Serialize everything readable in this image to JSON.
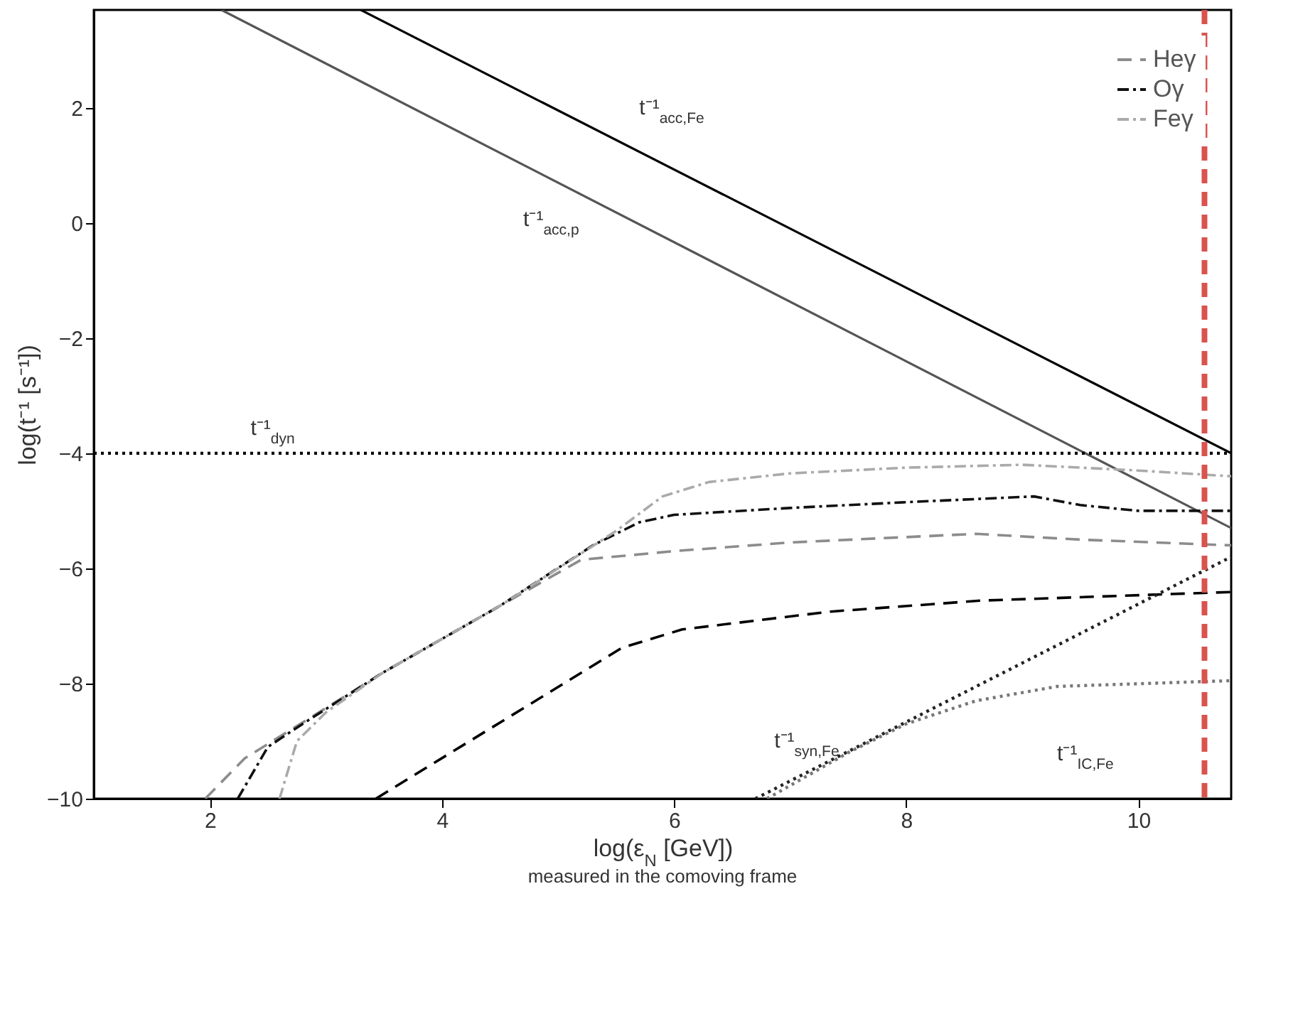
{
  "chart_data": {
    "type": "line",
    "xlabel": "log(ε$_{N}$ [GeV])",
    "ylabel": "log(t⁻¹ [s⁻¹])",
    "xlim": [
      1,
      10.8
    ],
    "ylim": [
      -10,
      3.7
    ],
    "xticks": [
      2,
      4,
      6,
      8,
      10
    ],
    "yticks": [
      -10,
      -8,
      -6,
      -4,
      -2,
      0,
      2
    ],
    "grid": false,
    "legend": "top right",
    "series": [
      {
        "color": "#000000",
        "line_style": "solid",
        "x": [
          3.3,
          10.8
        ],
        "values": [
          3.7,
          -4.0
        ]
      },
      {
        "color": "#555555",
        "line_style": "solid",
        "x": [
          2.1,
          10.8
        ],
        "values": [
          3.7,
          -5.3
        ]
      },
      {
        "color": "#000000",
        "line_style": "dotted",
        "x": [
          1,
          10.8
        ],
        "values": [
          -4,
          -4
        ]
      },
      {
        "name": "Heγ",
        "color": "#8c8c8c",
        "line_style": "dashed",
        "x": [
          1.96,
          2.3,
          2.7,
          3.5,
          4.5,
          5.2,
          6,
          7,
          8.6,
          9.5,
          10.8
        ],
        "values": [
          -10,
          -9.3,
          -8.8,
          -7.8,
          -6.65,
          -5.85,
          -5.7,
          -5.55,
          -5.4,
          -5.5,
          -5.6
        ]
      },
      {
        "name": "Oγ",
        "color": "#111111",
        "line_style": "dashdot",
        "x": [
          2.24,
          2.5,
          2.8,
          3.5,
          4.5,
          5.3,
          5.7,
          6,
          7,
          8,
          9.1,
          9.5,
          10,
          10.8
        ],
        "values": [
          -10,
          -9.1,
          -8.7,
          -7.8,
          -6.65,
          -5.6,
          -5.2,
          -5.07,
          -4.95,
          -4.85,
          -4.75,
          -4.9,
          -5.0,
          -5.0
        ]
      },
      {
        "name": "Feγ",
        "color": "#aaaaaa",
        "line_style": "dashdot",
        "x": [
          2.6,
          2.75,
          3.0,
          3.5,
          4.5,
          5.5,
          5.9,
          6.3,
          7,
          8,
          9,
          10,
          10.8
        ],
        "values": [
          -10,
          -9.0,
          -8.5,
          -7.8,
          -6.65,
          -5.35,
          -4.75,
          -4.5,
          -4.35,
          -4.25,
          -4.2,
          -4.3,
          -4.4
        ]
      },
      {
        "color": "#000000",
        "line_style": "dashed",
        "x": [
          3.43,
          5.55,
          6.07,
          7.35,
          8.64,
          10.8
        ],
        "values": [
          -10,
          -7.38,
          -7.06,
          -6.75,
          -6.56,
          -6.41
        ]
      },
      {
        "color": "#222222",
        "line_style": "dotted",
        "x": [
          6.7,
          10.8
        ],
        "values": [
          -10,
          -5.8
        ]
      },
      {
        "color": "#777777",
        "line_style": "dotted",
        "x": [
          6.8,
          7.5,
          8,
          8.6,
          9.3,
          10.8
        ],
        "values": [
          -10,
          -9.2,
          -8.7,
          -8.3,
          -8.05,
          -7.95
        ]
      }
    ],
    "ref_lines": [
      {
        "axis": "x",
        "value": 10.57,
        "color": "#d9534f",
        "line_style": "dashed"
      }
    ],
    "annotations": [
      {
        "text": "t⁻¹$_{acc,Fe}$",
        "x": 5.7,
        "y": 1.24
      },
      {
        "text": "t⁻¹$_{acc,p}$",
        "x": 4.7,
        "y": 1.01
      },
      {
        "text": "t⁻¹$_{dyn}$",
        "x": 2.35,
        "y": -4
      },
      {
        "text": "t⁻¹$_{syn,Fe}$",
        "x": 7.5,
        "y": -9.18
      },
      {
        "text": "t⁻¹$_{IC,Fe}$",
        "x": 9.3,
        "y": -8.05
      },
      "measured in the comoving frame"
    ]
  }
}
